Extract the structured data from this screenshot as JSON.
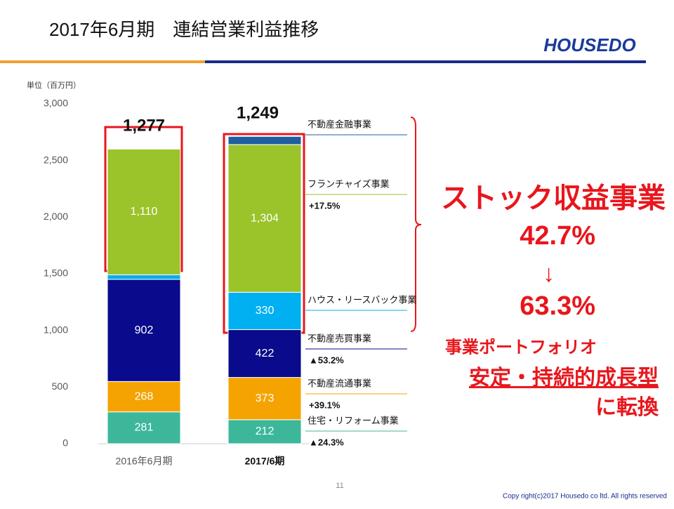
{
  "header": {
    "title": "2017年6月期　連結営業利益推移",
    "logo": "HOUSEDO",
    "page": "11",
    "copyright": "Copy right(c)2017 Housedo co ltd. All rights reserved"
  },
  "chart_data": {
    "type": "stacked_bar",
    "unit_label": "単位（百万円）",
    "categories": [
      "2016年6月期",
      "2017/6期"
    ],
    "series": [
      {
        "name": "住宅・リフォーム事業",
        "color": "#3cb79a",
        "values": [
          281,
          212
        ],
        "change": "▲24.3%"
      },
      {
        "name": "不動産流通事業",
        "color": "#f5a300",
        "values": [
          268,
          373
        ],
        "change": "+39.1%"
      },
      {
        "name": "不動産売買事業",
        "color": "#0a0a8c",
        "values": [
          902,
          422
        ],
        "change": "▲53.2%"
      },
      {
        "name": "ハウス・リースバック事業",
        "color": "#00b0f0",
        "values": [
          40,
          330
        ]
      },
      {
        "name": "フランチャイズ事業",
        "color": "#9bc32a",
        "values": [
          1110,
          1304
        ],
        "value_labels": [
          "1,110",
          "1,304"
        ],
        "change": "+17.5%"
      },
      {
        "name": "不動産金融事業",
        "color": "#1f5fa0",
        "values": [
          null,
          72
        ]
      }
    ],
    "totals": {
      "values": [
        1277,
        1249
      ],
      "value_labels": [
        "1,277",
        "1,249"
      ]
    },
    "ylim": [
      0,
      3000
    ],
    "yticks": [
      0,
      500,
      {
        "value": 1000,
        "label": "1,000"
      },
      {
        "value": 1500,
        "label": "1,500"
      },
      {
        "value": 2000,
        "label": "2,000"
      },
      {
        "value": 2500,
        "label": "2,500"
      },
      {
        "value": 3000,
        "label": "3,000"
      }
    ],
    "grid": false,
    "callout": {
      "heading": "ストック収益事業",
      "from": "42.7%",
      "arrow": "↓",
      "to": "63.3%",
      "note1": "事業ポートフォリオ",
      "note2": "安定・持続的成長型",
      "note3": "に転換"
    }
  }
}
